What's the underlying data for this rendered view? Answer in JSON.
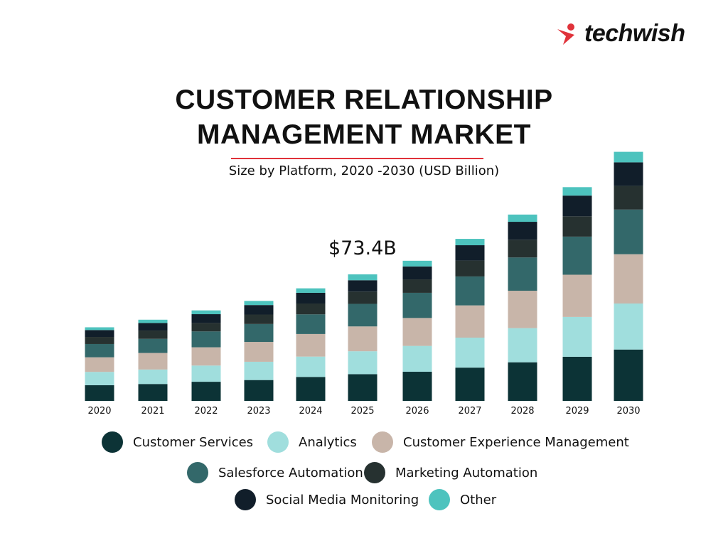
{
  "brand": {
    "name": "techwish",
    "icon": "red-runner-logo-icon",
    "color": "#e0323a"
  },
  "chart_data": {
    "type": "bar",
    "stacked": true,
    "title": "CUSTOMER RELATIONSHIP MANAGEMENT MARKET",
    "title_lines": [
      "CUSTOMER RELATIONSHIP",
      "MANAGEMENT MARKET"
    ],
    "subtitle": "Size by Platform, 2020 -2030 (USD Billion)",
    "xlabel": "",
    "ylabel": "",
    "grid": false,
    "y_axis_visible": false,
    "legend_position": "bottom",
    "categories": [
      "2020",
      "2021",
      "2022",
      "2023",
      "2024",
      "2025",
      "2026",
      "2027",
      "2028",
      "2029",
      "2030"
    ],
    "annotations": [
      {
        "category": "2025",
        "text": "$73.4B"
      }
    ],
    "series": [
      {
        "name": "Customer Services",
        "color": "#0c3336",
        "values": [
          9.1,
          9.8,
          11.1,
          12.1,
          13.9,
          15.5,
          16.9,
          19.3,
          22.4,
          25.6,
          29.8
        ]
      },
      {
        "name": "Analytics",
        "color": "#a0dedd",
        "values": [
          7.7,
          8.4,
          9.4,
          10.6,
          11.8,
          13.3,
          15.0,
          17.4,
          19.8,
          23.1,
          26.7
        ]
      },
      {
        "name": "Customer Experience Management",
        "color": "#c8b5a9",
        "values": [
          8.5,
          9.6,
          10.6,
          11.5,
          13.1,
          14.4,
          16.2,
          18.7,
          21.7,
          24.5,
          28.6
        ]
      },
      {
        "name": "Salesforce Automation",
        "color": "#33686a",
        "values": [
          7.7,
          8.2,
          9.2,
          10.4,
          11.4,
          13.1,
          14.6,
          16.8,
          19.3,
          22.1,
          25.9
        ]
      },
      {
        "name": "Marketing Automation",
        "color": "#263130",
        "values": [
          4.1,
          4.8,
          4.9,
          5.5,
          6.3,
          7.1,
          7.8,
          9.2,
          10.3,
          11.8,
          13.7
        ]
      },
      {
        "name": "Social Media Monitoring",
        "color": "#111e2a",
        "values": [
          4.0,
          4.4,
          5.1,
          5.5,
          6.2,
          6.6,
          7.5,
          8.9,
          10.4,
          12.0,
          13.7
        ]
      },
      {
        "name": "Other",
        "color": "#4dc3be",
        "values": [
          1.6,
          1.9,
          2.2,
          2.4,
          2.6,
          3.4,
          3.3,
          3.7,
          4.2,
          4.9,
          6.1
        ]
      }
    ]
  }
}
